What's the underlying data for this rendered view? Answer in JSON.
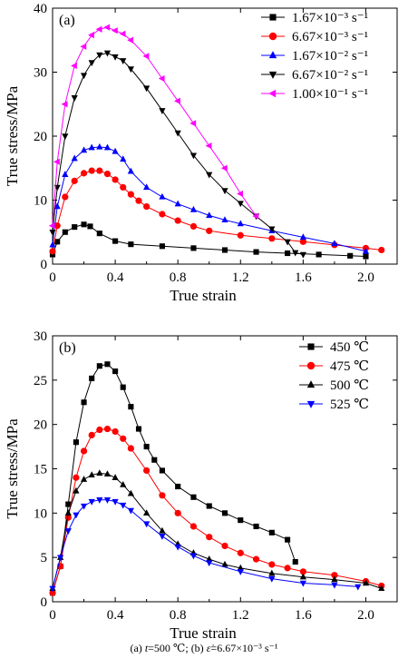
{
  "caption": {
    "a_label": "(a)",
    "a_var": "t",
    "a_text": "=500 ℃;",
    "b_label": "(b)",
    "b_var": "ε̇",
    "b_text": "=6.67×10⁻³ s⁻¹"
  },
  "chart_data": [
    {
      "type": "line",
      "panel_label": "(a)",
      "xlabel": "True strain",
      "ylabel": "True stress/MPa",
      "xlim": [
        0,
        2.2
      ],
      "ylim": [
        0,
        40
      ],
      "xticks": [
        0,
        0.4,
        0.8,
        1.2,
        1.6,
        2.0
      ],
      "xtick_labels": [
        "0",
        "0.4",
        "0.8",
        "1.2",
        "1.6",
        "2.0"
      ],
      "yticks": [
        0,
        10,
        20,
        30,
        40
      ],
      "ytick_labels": [
        "0",
        "10",
        "20",
        "30",
        "40"
      ],
      "legend_position": "top-right",
      "series": [
        {
          "name": "1.67×10⁻³ s⁻¹",
          "color": "#000000",
          "marker": "square",
          "x": [
            0.0,
            0.03,
            0.08,
            0.14,
            0.2,
            0.24,
            0.3,
            0.4,
            0.5,
            0.7,
            0.9,
            1.1,
            1.3,
            1.5,
            1.7,
            1.9,
            2.0
          ],
          "y": [
            1.5,
            3.5,
            5.0,
            5.8,
            6.2,
            5.9,
            4.8,
            3.6,
            3.1,
            2.8,
            2.5,
            2.2,
            1.9,
            1.7,
            1.5,
            1.3,
            1.2
          ]
        },
        {
          "name": "6.67×10⁻³ s⁻¹",
          "color": "#ff0000",
          "marker": "circle",
          "x": [
            0.0,
            0.03,
            0.08,
            0.14,
            0.2,
            0.25,
            0.3,
            0.35,
            0.4,
            0.45,
            0.5,
            0.55,
            0.6,
            0.7,
            0.8,
            0.9,
            1.0,
            1.2,
            1.4,
            1.6,
            1.8,
            2.0,
            2.1
          ],
          "y": [
            2.0,
            6.0,
            10.5,
            13.0,
            14.2,
            14.6,
            14.6,
            14.1,
            13.2,
            12.0,
            10.9,
            9.9,
            9.0,
            7.8,
            6.8,
            5.9,
            5.2,
            4.5,
            4.0,
            3.5,
            3.0,
            2.5,
            2.2
          ]
        },
        {
          "name": "1.67×10⁻² s⁻¹",
          "color": "#0000ff",
          "marker": "triangle-up",
          "x": [
            0.0,
            0.03,
            0.08,
            0.14,
            0.2,
            0.25,
            0.3,
            0.35,
            0.4,
            0.45,
            0.5,
            0.6,
            0.7,
            0.8,
            0.9,
            1.0,
            1.1,
            1.2,
            1.4,
            1.6,
            1.8,
            2.0
          ],
          "y": [
            3.0,
            9.0,
            14.0,
            16.5,
            17.8,
            18.2,
            18.3,
            18.2,
            17.6,
            16.4,
            14.5,
            12.0,
            10.5,
            9.4,
            8.5,
            7.6,
            6.9,
            6.3,
            5.2,
            4.2,
            3.2,
            2.0
          ]
        },
        {
          "name": "6.67×10⁻² s⁻¹",
          "color": "#000000",
          "marker": "triangle-down",
          "x": [
            0.0,
            0.03,
            0.08,
            0.14,
            0.2,
            0.25,
            0.3,
            0.35,
            0.4,
            0.45,
            0.5,
            0.6,
            0.7,
            0.8,
            0.9,
            1.0,
            1.1,
            1.2,
            1.3,
            1.4,
            1.5,
            1.55,
            1.6
          ],
          "y": [
            5.0,
            12.0,
            20.0,
            26.0,
            29.5,
            31.5,
            32.7,
            33.0,
            32.4,
            31.8,
            30.5,
            27.5,
            24.0,
            20.5,
            17.0,
            14.0,
            11.5,
            9.5,
            7.5,
            5.5,
            3.5,
            1.8,
            1.5
          ]
        },
        {
          "name": "1.00×10⁻¹ s⁻¹",
          "color": "#ff00ff",
          "marker": "triangle-left",
          "x": [
            0.0,
            0.03,
            0.08,
            0.14,
            0.2,
            0.25,
            0.3,
            0.35,
            0.4,
            0.45,
            0.5,
            0.6,
            0.7,
            0.8,
            0.9,
            1.0,
            1.1,
            1.2,
            1.3
          ],
          "y": [
            6.0,
            16.0,
            25.0,
            31.0,
            34.0,
            35.8,
            36.7,
            37.0,
            36.5,
            36.0,
            35.0,
            32.5,
            29.0,
            25.5,
            22.0,
            18.5,
            15.0,
            11.0,
            7.5
          ]
        }
      ]
    },
    {
      "type": "line",
      "panel_label": "(b)",
      "xlabel": "True strain",
      "ylabel": "True stress/MPa",
      "xlim": [
        0,
        2.2
      ],
      "ylim": [
        0,
        30
      ],
      "xticks": [
        0,
        0.4,
        0.8,
        1.2,
        1.6,
        2.0
      ],
      "xtick_labels": [
        "0",
        "0.4",
        "0.8",
        "1.2",
        "1.6",
        "2.0"
      ],
      "yticks": [
        0,
        5,
        10,
        15,
        20,
        25,
        30
      ],
      "ytick_labels": [
        "0",
        "5",
        "10",
        "15",
        "20",
        "25",
        "30"
      ],
      "legend_position": "top-right",
      "series": [
        {
          "name": "450 ℃",
          "color": "#000000",
          "marker": "square",
          "x": [
            0.0,
            0.05,
            0.1,
            0.15,
            0.2,
            0.25,
            0.3,
            0.35,
            0.4,
            0.45,
            0.5,
            0.55,
            0.6,
            0.65,
            0.7,
            0.8,
            0.9,
            1.0,
            1.1,
            1.2,
            1.3,
            1.4,
            1.5,
            1.55
          ],
          "y": [
            1.0,
            4.0,
            11.0,
            18.0,
            22.5,
            25.2,
            26.6,
            26.8,
            26.0,
            24.2,
            22.0,
            19.5,
            17.5,
            16.0,
            14.8,
            13.0,
            11.8,
            10.8,
            10.0,
            9.2,
            8.5,
            7.8,
            7.0,
            4.5
          ]
        },
        {
          "name": "475 ℃",
          "color": "#ff0000",
          "marker": "circle",
          "x": [
            0.0,
            0.05,
            0.1,
            0.15,
            0.2,
            0.25,
            0.3,
            0.35,
            0.4,
            0.45,
            0.5,
            0.6,
            0.7,
            0.8,
            0.9,
            1.0,
            1.1,
            1.2,
            1.3,
            1.4,
            1.5,
            1.6,
            1.8,
            2.0,
            2.1
          ],
          "y": [
            1.0,
            4.0,
            9.5,
            14.0,
            17.0,
            18.8,
            19.4,
            19.5,
            19.2,
            18.4,
            17.3,
            14.8,
            12.0,
            10.0,
            8.5,
            7.3,
            6.3,
            5.5,
            4.8,
            4.2,
            3.8,
            3.4,
            3.0,
            2.3,
            1.8
          ]
        },
        {
          "name": "500 ℃",
          "color": "#000000",
          "marker": "triangle-up",
          "x": [
            0.0,
            0.05,
            0.1,
            0.15,
            0.2,
            0.25,
            0.3,
            0.35,
            0.4,
            0.45,
            0.5,
            0.6,
            0.7,
            0.8,
            0.9,
            1.0,
            1.1,
            1.2,
            1.4,
            1.6,
            1.8,
            2.0,
            2.1
          ],
          "y": [
            1.5,
            5.0,
            10.0,
            12.5,
            13.8,
            14.3,
            14.5,
            14.4,
            14.0,
            13.2,
            12.2,
            10.0,
            8.0,
            6.5,
            5.5,
            4.8,
            4.2,
            3.8,
            3.2,
            2.8,
            2.5,
            2.1,
            1.5
          ]
        },
        {
          "name": "525 ℃",
          "color": "#0000ff",
          "marker": "triangle-down",
          "x": [
            0.0,
            0.05,
            0.1,
            0.15,
            0.2,
            0.25,
            0.3,
            0.35,
            0.4,
            0.45,
            0.5,
            0.6,
            0.7,
            0.8,
            0.9,
            1.0,
            1.2,
            1.4,
            1.6,
            1.8,
            1.95
          ],
          "y": [
            1.5,
            5.0,
            8.0,
            9.8,
            10.8,
            11.3,
            11.5,
            11.5,
            11.3,
            10.9,
            10.3,
            8.8,
            7.4,
            6.2,
            5.2,
            4.4,
            3.4,
            2.6,
            2.1,
            1.9,
            1.7
          ]
        }
      ]
    }
  ]
}
